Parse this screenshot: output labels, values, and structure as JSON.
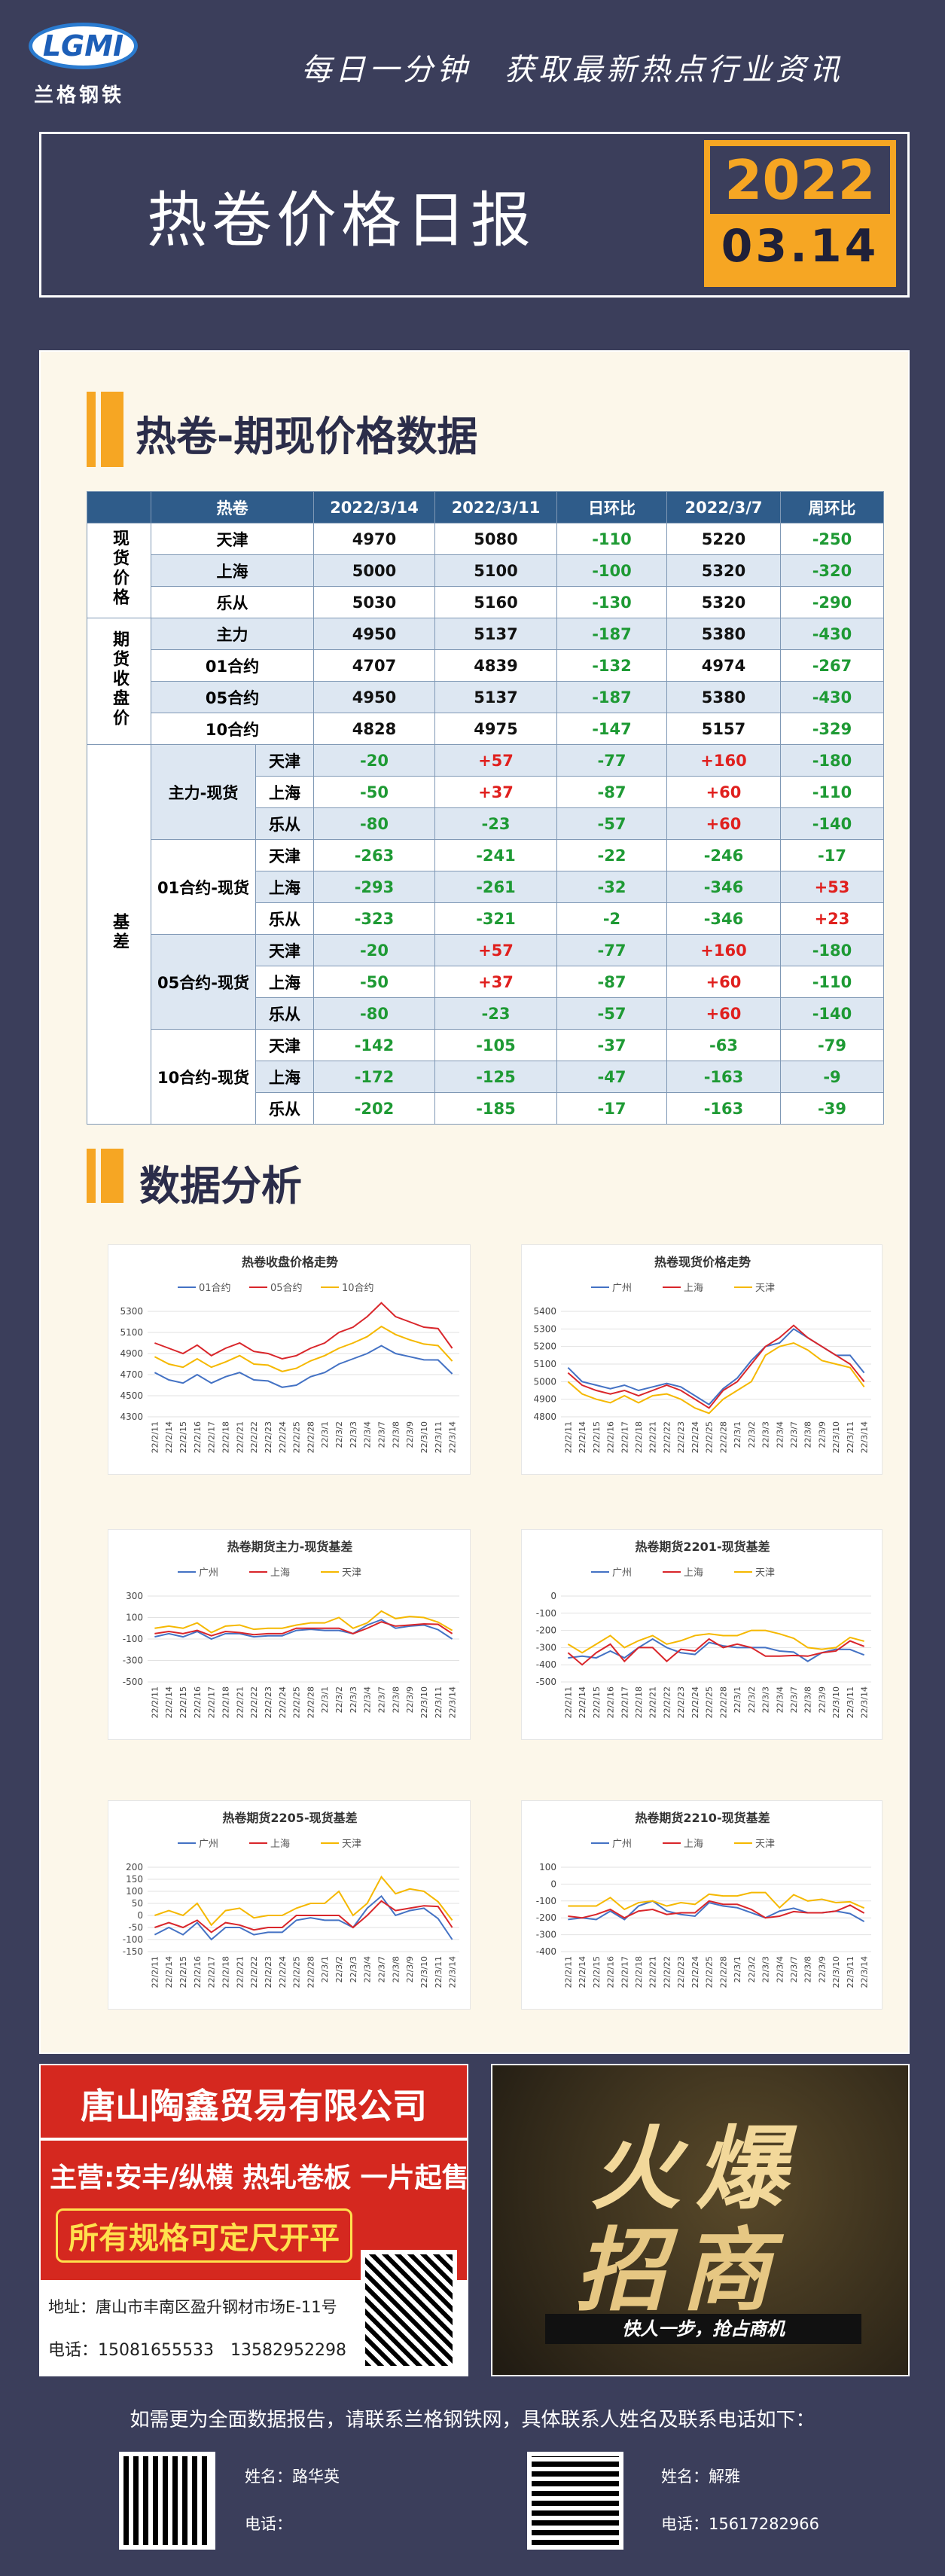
{
  "header": {
    "logo": "LGMI",
    "brand": "兰格钢铁",
    "slogan": "每日一分钟　获取最新热点行业资讯",
    "title": "热卷价格日报",
    "year": "2022",
    "date": "03.14"
  },
  "sections": [
    {
      "title": "热卷-期现价格数据"
    },
    {
      "title": "数据分析"
    }
  ],
  "table": {
    "header": [
      "热卷",
      "2022/3/14",
      "2022/3/11",
      "日环比",
      "2022/3/7",
      "周环比"
    ],
    "groups": [
      {
        "label": "现货价格",
        "rows": [
          {
            "name": "天津",
            "cells": [
              "4970",
              "5080",
              "-110",
              "5220",
              "-250"
            ]
          },
          {
            "name": "上海",
            "cells": [
              "5000",
              "5100",
              "-100",
              "5320",
              "-320"
            ]
          },
          {
            "name": "乐从",
            "cells": [
              "5030",
              "5160",
              "-130",
              "5320",
              "-290"
            ]
          }
        ]
      },
      {
        "label": "期货收盘价",
        "rows": [
          {
            "name": "主力",
            "cells": [
              "4950",
              "5137",
              "-187",
              "5380",
              "-430"
            ]
          },
          {
            "name": "01合约",
            "cells": [
              "4707",
              "4839",
              "-132",
              "4974",
              "-267"
            ]
          },
          {
            "name": "05合约",
            "cells": [
              "4950",
              "5137",
              "-187",
              "5380",
              "-430"
            ]
          },
          {
            "name": "10合约",
            "cells": [
              "4828",
              "4975",
              "-147",
              "5157",
              "-329"
            ]
          }
        ]
      },
      {
        "label": "基差",
        "subgroups": [
          {
            "label": "主力-现货",
            "rows": [
              {
                "name": "天津",
                "cells": [
                  "-20",
                  "+57",
                  "-77",
                  "+160",
                  "-180"
                ]
              },
              {
                "name": "上海",
                "cells": [
                  "-50",
                  "+37",
                  "-87",
                  "+60",
                  "-110"
                ]
              },
              {
                "name": "乐从",
                "cells": [
                  "-80",
                  "-23",
                  "-57",
                  "+60",
                  "-140"
                ]
              }
            ]
          },
          {
            "label": "01合约-现货",
            "rows": [
              {
                "name": "天津",
                "cells": [
                  "-263",
                  "-241",
                  "-22",
                  "-246",
                  "-17"
                ]
              },
              {
                "name": "上海",
                "cells": [
                  "-293",
                  "-261",
                  "-32",
                  "-346",
                  "+53"
                ]
              },
              {
                "name": "乐从",
                "cells": [
                  "-323",
                  "-321",
                  "-2",
                  "-346",
                  "+23"
                ]
              }
            ]
          },
          {
            "label": "05合约-现货",
            "rows": [
              {
                "name": "天津",
                "cells": [
                  "-20",
                  "+57",
                  "-77",
                  "+160",
                  "-180"
                ]
              },
              {
                "name": "上海",
                "cells": [
                  "-50",
                  "+37",
                  "-87",
                  "+60",
                  "-110"
                ]
              },
              {
                "name": "乐从",
                "cells": [
                  "-80",
                  "-23",
                  "-57",
                  "+60",
                  "-140"
                ]
              }
            ]
          },
          {
            "label": "10合约-现货",
            "rows": [
              {
                "name": "天津",
                "cells": [
                  "-142",
                  "-105",
                  "-37",
                  "-63",
                  "-79"
                ]
              },
              {
                "name": "上海",
                "cells": [
                  "-172",
                  "-125",
                  "-47",
                  "-163",
                  "-9"
                ]
              },
              {
                "name": "乐从",
                "cells": [
                  "-202",
                  "-185",
                  "-17",
                  "-163",
                  "-39"
                ]
              }
            ]
          }
        ]
      }
    ]
  },
  "chart_data": [
    {
      "type": "line",
      "title": "热卷收盘价格走势",
      "grid": true,
      "x": [
        "22/2/11",
        "22/2/14",
        "22/2/15",
        "22/2/16",
        "22/2/17",
        "22/2/18",
        "22/2/21",
        "22/2/22",
        "22/2/23",
        "22/2/24",
        "22/2/25",
        "22/2/28",
        "22/3/1",
        "22/3/2",
        "22/3/3",
        "22/3/4",
        "22/3/7",
        "22/3/8",
        "22/3/9",
        "22/3/10",
        "22/3/11",
        "22/3/14"
      ],
      "series": [
        {
          "name": "01合约",
          "color": "#4472c4",
          "values": [
            4720,
            4650,
            4620,
            4700,
            4620,
            4680,
            4720,
            4650,
            4640,
            4580,
            4600,
            4680,
            4720,
            4800,
            4850,
            4900,
            4974,
            4900,
            4870,
            4840,
            4839,
            4707
          ]
        },
        {
          "name": "05合约",
          "color": "#d9262b",
          "values": [
            5000,
            4950,
            4900,
            4980,
            4880,
            4950,
            5000,
            4920,
            4900,
            4850,
            4880,
            4950,
            5000,
            5100,
            5150,
            5250,
            5380,
            5250,
            5200,
            5150,
            5137,
            4950
          ]
        },
        {
          "name": "10合约",
          "color": "#f5b800",
          "values": [
            4870,
            4800,
            4770,
            4850,
            4770,
            4820,
            4880,
            4800,
            4790,
            4730,
            4760,
            4830,
            4880,
            4950,
            5000,
            5060,
            5157,
            5080,
            5030,
            4990,
            4975,
            4828
          ]
        }
      ],
      "ylim": [
        4300,
        5300
      ],
      "yticks": [
        4300,
        4500,
        4700,
        4900,
        5100,
        5300
      ]
    },
    {
      "type": "line",
      "title": "热卷现货价格走势",
      "grid": true,
      "x": [
        "22/2/11",
        "22/2/14",
        "22/2/15",
        "22/2/16",
        "22/2/17",
        "22/2/18",
        "22/2/21",
        "22/2/22",
        "22/2/23",
        "22/2/24",
        "22/2/25",
        "22/2/28",
        "22/3/1",
        "22/3/2",
        "22/3/3",
        "22/3/4",
        "22/3/7",
        "22/3/8",
        "22/3/9",
        "22/3/10",
        "22/3/11",
        "22/3/14"
      ],
      "series": [
        {
          "name": "广州",
          "color": "#4472c4",
          "values": [
            5080,
            5000,
            4980,
            4960,
            4980,
            4950,
            4970,
            4990,
            4970,
            4920,
            4870,
            4960,
            5020,
            5120,
            5200,
            5220,
            5300,
            5250,
            5200,
            5150,
            5150,
            5050
          ]
        },
        {
          "name": "上海",
          "color": "#d9262b",
          "values": [
            5050,
            4980,
            4950,
            4930,
            4950,
            4920,
            4950,
            4980,
            4950,
            4900,
            4850,
            4950,
            5000,
            5100,
            5200,
            5250,
            5320,
            5250,
            5200,
            5150,
            5100,
            5000
          ]
        },
        {
          "name": "天津",
          "color": "#f5b800",
          "values": [
            5000,
            4930,
            4900,
            4880,
            4920,
            4880,
            4920,
            4930,
            4900,
            4850,
            4820,
            4900,
            4950,
            5000,
            5150,
            5200,
            5220,
            5180,
            5120,
            5100,
            5080,
            4970
          ]
        }
      ],
      "ylim": [
        4800,
        5400
      ],
      "yticks": [
        4800,
        4900,
        5000,
        5100,
        5200,
        5300,
        5400
      ]
    },
    {
      "type": "line",
      "title": "热卷期货主力-现货基差",
      "grid": true,
      "x": [
        "22/2/11",
        "22/2/14",
        "22/2/15",
        "22/2/16",
        "22/2/17",
        "22/2/18",
        "22/2/21",
        "22/2/22",
        "22/2/23",
        "22/2/24",
        "22/2/25",
        "22/2/28",
        "22/3/1",
        "22/3/2",
        "22/3/3",
        "22/3/4",
        "22/3/7",
        "22/3/8",
        "22/3/9",
        "22/3/10",
        "22/3/11",
        "22/3/14"
      ],
      "series": [
        {
          "name": "广州",
          "color": "#4472c4",
          "values": [
            -80,
            -50,
            -80,
            -30,
            -100,
            -50,
            -50,
            -80,
            -70,
            -70,
            -20,
            -10,
            -20,
            -20,
            -50,
            30,
            80,
            0,
            20,
            30,
            -13,
            -100
          ]
        },
        {
          "name": "上海",
          "color": "#d9262b",
          "values": [
            -50,
            -30,
            -50,
            -20,
            -70,
            -30,
            -40,
            -60,
            -50,
            -50,
            0,
            0,
            0,
            0,
            -50,
            0,
            60,
            20,
            30,
            40,
            37,
            -50
          ]
        },
        {
          "name": "天津",
          "color": "#f5b800",
          "values": [
            0,
            20,
            0,
            50,
            -40,
            20,
            30,
            -10,
            0,
            0,
            30,
            50,
            50,
            100,
            0,
            50,
            160,
            90,
            110,
            100,
            57,
            -20
          ]
        }
      ],
      "ylim": [
        -500,
        300
      ],
      "yticks": [
        -500,
        -300,
        -100,
        100,
        300
      ]
    },
    {
      "type": "line",
      "title": "热卷期货2201-现货基差",
      "grid": true,
      "x": [
        "22/2/11",
        "22/2/14",
        "22/2/15",
        "22/2/16",
        "22/2/17",
        "22/2/18",
        "22/2/21",
        "22/2/22",
        "22/2/23",
        "22/2/24",
        "22/2/25",
        "22/2/28",
        "22/3/1",
        "22/3/2",
        "22/3/3",
        "22/3/4",
        "22/3/7",
        "22/3/8",
        "22/3/9",
        "22/3/10",
        "22/3/11",
        "22/3/14"
      ],
      "series": [
        {
          "name": "广州",
          "color": "#4472c4",
          "values": [
            -360,
            -350,
            -360,
            -320,
            -360,
            -300,
            -250,
            -300,
            -330,
            -340,
            -270,
            -290,
            -300,
            -300,
            -300,
            -320,
            -326,
            -380,
            -330,
            -310,
            -311,
            -343
          ]
        },
        {
          "name": "上海",
          "color": "#d9262b",
          "values": [
            -330,
            -400,
            -330,
            -280,
            -380,
            -300,
            -300,
            -380,
            -310,
            -320,
            -250,
            -300,
            -280,
            -300,
            -350,
            -350,
            -346,
            -350,
            -330,
            -320,
            -261,
            -293
          ]
        },
        {
          "name": "天津",
          "color": "#f5b800",
          "values": [
            -280,
            -330,
            -280,
            -230,
            -300,
            -260,
            -230,
            -280,
            -260,
            -230,
            -220,
            -230,
            -230,
            -200,
            -200,
            -220,
            -246,
            -300,
            -310,
            -300,
            -241,
            -263
          ]
        }
      ],
      "ylim": [
        -500,
        0
      ],
      "yticks": [
        -500,
        -400,
        -300,
        -200,
        -100,
        0
      ]
    },
    {
      "type": "line",
      "title": "热卷期货2205-现货基差",
      "grid": true,
      "x": [
        "22/2/11",
        "22/2/14",
        "22/2/15",
        "22/2/16",
        "22/2/17",
        "22/2/18",
        "22/2/21",
        "22/2/22",
        "22/2/23",
        "22/2/24",
        "22/2/25",
        "22/2/28",
        "22/3/1",
        "22/3/2",
        "22/3/3",
        "22/3/4",
        "22/3/7",
        "22/3/8",
        "22/3/9",
        "22/3/10",
        "22/3/11",
        "22/3/14"
      ],
      "series": [
        {
          "name": "广州",
          "color": "#4472c4",
          "values": [
            -80,
            -50,
            -80,
            -30,
            -100,
            -50,
            -50,
            -80,
            -70,
            -70,
            -20,
            -10,
            -20,
            -20,
            -50,
            30,
            80,
            0,
            20,
            30,
            -13,
            -100
          ]
        },
        {
          "name": "上海",
          "color": "#d9262b",
          "values": [
            -50,
            -30,
            -50,
            -20,
            -70,
            -30,
            -40,
            -60,
            -50,
            -50,
            0,
            0,
            0,
            0,
            -50,
            0,
            60,
            20,
            30,
            40,
            37,
            -50
          ]
        },
        {
          "name": "天津",
          "color": "#f5b800",
          "values": [
            0,
            20,
            0,
            50,
            -40,
            20,
            30,
            -10,
            0,
            0,
            30,
            50,
            50,
            100,
            0,
            50,
            160,
            90,
            110,
            100,
            57,
            -20
          ]
        }
      ],
      "ylim": [
        -150,
        200
      ],
      "yticks": [
        -150,
        -100,
        -50,
        0,
        50,
        100,
        150,
        200
      ]
    },
    {
      "type": "line",
      "title": "热卷期货2210-现货基差",
      "grid": true,
      "x": [
        "22/2/11",
        "22/2/14",
        "22/2/15",
        "22/2/16",
        "22/2/17",
        "22/2/18",
        "22/2/21",
        "22/2/22",
        "22/2/23",
        "22/2/24",
        "22/2/25",
        "22/2/28",
        "22/3/1",
        "22/3/2",
        "22/3/3",
        "22/3/4",
        "22/3/7",
        "22/3/8",
        "22/3/9",
        "22/3/10",
        "22/3/11",
        "22/3/14"
      ],
      "series": [
        {
          "name": "广州",
          "color": "#4472c4",
          "values": [
            -210,
            -200,
            -210,
            -160,
            -210,
            -130,
            -100,
            -160,
            -180,
            -190,
            -110,
            -130,
            -140,
            -170,
            -200,
            -160,
            -143,
            -170,
            -170,
            -160,
            -175,
            -222
          ]
        },
        {
          "name": "上海",
          "color": "#d9262b",
          "values": [
            -190,
            -200,
            -180,
            -150,
            -200,
            -160,
            -150,
            -180,
            -170,
            -170,
            -100,
            -120,
            -120,
            -150,
            -200,
            -190,
            -163,
            -170,
            -170,
            -160,
            -125,
            -172
          ]
        },
        {
          "name": "天津",
          "color": "#f5b800",
          "values": [
            -130,
            -130,
            -130,
            -80,
            -150,
            -110,
            -100,
            -130,
            -110,
            -120,
            -60,
            -70,
            -70,
            -50,
            -50,
            -140,
            -63,
            -100,
            -90,
            -110,
            -105,
            -142
          ]
        }
      ],
      "ylim": [
        -400,
        100
      ],
      "yticks": [
        -400,
        -300,
        -200,
        -100,
        0,
        100
      ]
    }
  ],
  "ads": [
    {
      "company": "唐山陶鑫贸易有限公司",
      "business": "主营:安丰/纵横 热轧卷板 一片起售",
      "slogan": "所有规格可定尺开平",
      "address": "地址：唐山市丰南区盈升钢材市场E-11号",
      "phone": "电话：15081655533　13582952298"
    },
    {
      "line1": "火爆",
      "line2": "招商",
      "tagline": "快人一步，抢占商机"
    }
  ],
  "footer": {
    "note": "如需更为全面数据报告，请联系兰格钢铁网，具体联系人姓名及联系电话如下：",
    "contacts": [
      {
        "name_label": "姓名：",
        "name": "路华英",
        "phone_label": "电话："
      },
      {
        "name_label": "姓名：",
        "name": "解雅",
        "phone_label": "电话：",
        "phone": "15617282966"
      }
    ]
  }
}
